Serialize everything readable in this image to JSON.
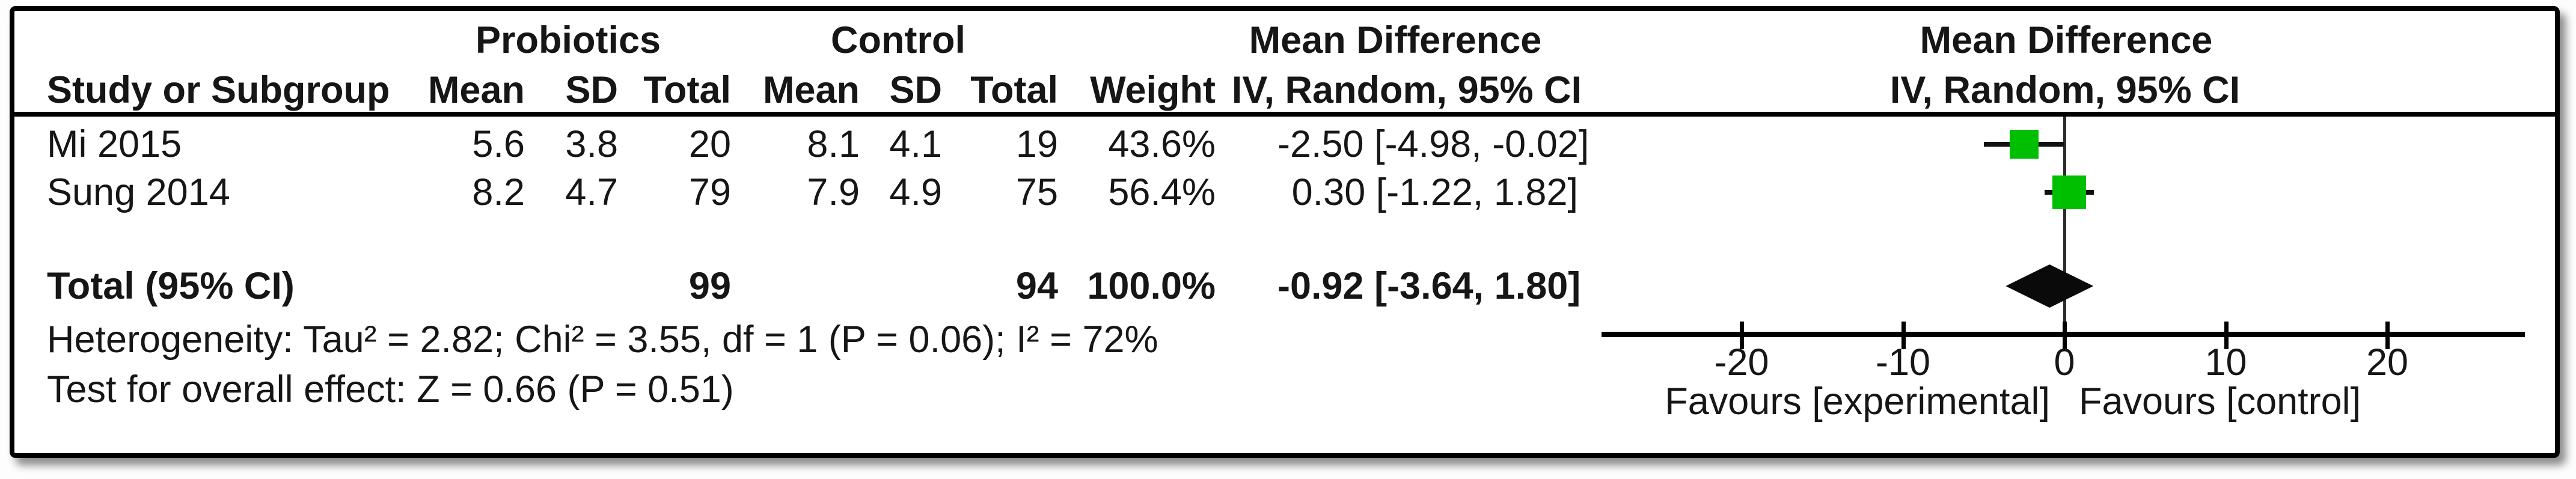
{
  "table": {
    "group_headers": {
      "probiotics": "Probiotics",
      "control": "Control",
      "mean_difference": "Mean Difference"
    },
    "column_headers": {
      "study": "Study or Subgroup",
      "mean": "Mean",
      "sd": "SD",
      "total": "Total",
      "weight": "Weight",
      "iv_random": "IV, Random, 95% CI"
    },
    "rows": [
      {
        "study": "Mi 2015",
        "mean1": "5.6",
        "sd1": "3.8",
        "total1": "20",
        "mean2": "8.1",
        "sd2": "4.1",
        "total2": "19",
        "weight": "43.6%",
        "ci": "-2.50 [-4.98, -0.02]"
      },
      {
        "study": "Sung 2014",
        "mean1": "8.2",
        "sd1": "4.7",
        "total1": "79",
        "mean2": "7.9",
        "sd2": "4.9",
        "total2": "75",
        "weight": "56.4%",
        "ci": "0.30 [-1.22, 1.82]"
      }
    ],
    "total_row": {
      "label": "Total (95% CI)",
      "total1": "99",
      "total2": "94",
      "weight": "100.0%",
      "ci": "-0.92 [-3.64, 1.80]"
    },
    "heterogeneity": "Heterogeneity: Tau² = 2.82; Chi² = 3.55, df = 1 (P = 0.06); I² = 72%",
    "overall_effect": "Test for overall effect: Z = 0.66 (P = 0.51)"
  },
  "plot": {
    "header_line1": "Mean Difference",
    "header_line2": "IV, Random, 95% CI",
    "tick_labels": [
      "-20",
      "-10",
      "0",
      "10",
      "20"
    ],
    "favours_left": "Favours [experimental]",
    "favours_right": "Favours [control]",
    "marker_color": "#00BE00",
    "diamond_color": "#0a0a0a"
  },
  "chart_data": {
    "type": "forest",
    "title": "Mean Difference — IV, Random, 95% CI",
    "effect_measure": "Mean Difference",
    "model": "IV, Random, 95% CI",
    "axis": {
      "ticks": [
        -20,
        -10,
        0,
        10,
        20
      ],
      "xlim": [
        -28.7,
        28.5
      ],
      "zero_line": 0
    },
    "studies": [
      {
        "study": "Mi 2015",
        "probiotics": {
          "mean": 5.6,
          "sd": 3.8,
          "total": 20
        },
        "control": {
          "mean": 8.1,
          "sd": 4.1,
          "total": 19
        },
        "weight_pct": 43.6,
        "md": -2.5,
        "ci_low": -4.98,
        "ci_high": -0.02
      },
      {
        "study": "Sung 2014",
        "probiotics": {
          "mean": 8.2,
          "sd": 4.7,
          "total": 79
        },
        "control": {
          "mean": 7.9,
          "sd": 4.9,
          "total": 75
        },
        "weight_pct": 56.4,
        "md": 0.3,
        "ci_low": -1.22,
        "ci_high": 1.82
      }
    ],
    "total": {
      "label": "Total (95% CI)",
      "probiotics_total": 99,
      "control_total": 94,
      "weight_pct": 100.0,
      "md": -0.92,
      "ci_low": -3.64,
      "ci_high": 1.8
    },
    "heterogeneity": {
      "tau2": 2.82,
      "chi2": 3.55,
      "df": 1,
      "p": 0.06,
      "i2_pct": 72
    },
    "overall_effect": {
      "z": 0.66,
      "p": 0.51
    },
    "favours": [
      "Favours [experimental]",
      "Favours [control]"
    ]
  }
}
